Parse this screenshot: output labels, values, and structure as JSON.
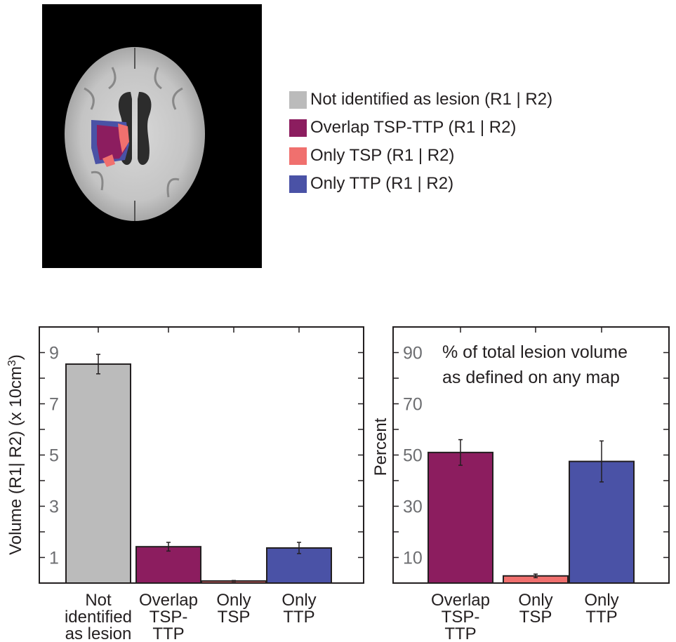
{
  "colors": {
    "not_identified": "#bbbbbb",
    "overlap": "#8c1d5f",
    "only_tsp": "#f0706e",
    "only_ttp": "#4a52a6",
    "axis": "#231f20",
    "tick_text": "#6d6e71"
  },
  "legend": [
    {
      "label": "Not identified as lesion (R1 | R2)",
      "color": "#bbbbbb"
    },
    {
      "label": "Overlap TSP-TTP (R1 | R2)",
      "color": "#8c1d5f"
    },
    {
      "label": "Only TSP (R1 | R2)",
      "color": "#f0706e"
    },
    {
      "label": "Only TTP (R1 | R2)",
      "color": "#4a52a6"
    }
  ],
  "chart_data": [
    {
      "type": "bar",
      "categories": [
        [
          "Not",
          "identified",
          "as lesion"
        ],
        [
          "Overlap",
          "TSP-",
          "TTP"
        ],
        [
          "Only",
          "TSP"
        ],
        [
          "Only",
          "TTP"
        ]
      ],
      "values": [
        8.55,
        1.42,
        0.08,
        1.37
      ],
      "errors": [
        0.38,
        0.17,
        0.02,
        0.22
      ],
      "colors": [
        "#bbbbbb",
        "#8c1d5f",
        "#f0706e",
        "#4a52a6"
      ],
      "ylabel_main": "Volume (R1| R2) (x 10cm",
      "ylabel_sup": "3",
      "ylabel_end": ")",
      "yticks": [
        "1",
        "3",
        "5",
        "7",
        "9"
      ],
      "ylim": [
        0,
        10
      ],
      "annotation": []
    },
    {
      "type": "bar",
      "categories": [
        [
          "Overlap",
          "TSP-",
          "TTP"
        ],
        [
          "Only",
          "TSP"
        ],
        [
          "Only",
          "TTP"
        ]
      ],
      "values": [
        51,
        2.8,
        47.5
      ],
      "errors": [
        5,
        0.7,
        8
      ],
      "colors": [
        "#8c1d5f",
        "#f0706e",
        "#4a52a6"
      ],
      "ylabel_main": "Percent",
      "ylabel_sup": "",
      "ylabel_end": "",
      "yticks": [
        "10",
        "30",
        "50",
        "70",
        "90"
      ],
      "ylim": [
        0,
        100
      ],
      "annotation": [
        "% of total lesion volume",
        "as defined on any map"
      ]
    }
  ]
}
